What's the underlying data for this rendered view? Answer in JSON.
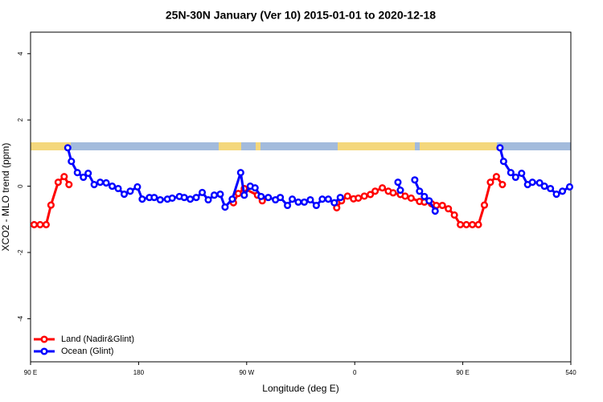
{
  "chart_data": {
    "type": "line",
    "title": "25N-30N January (Ver 10)   2015-01-01 to 2020-12-18",
    "x_label": "Longitude (deg E)",
    "y_label": "XCO2 - MLO trend (ppm)",
    "xlim": [
      90,
      540
    ],
    "ylim": [
      -5.3,
      4.65
    ],
    "xticks": [
      {
        "value": 90,
        "label": "90 E"
      },
      180,
      {
        "value": 270,
        "label": "90 W"
      },
      {
        "value": 360,
        "label": "0"
      },
      {
        "value": 450,
        "label": "90 E"
      },
      540
    ],
    "yticks": [
      4,
      2,
      0,
      -2,
      -4
    ],
    "legend": "bottom-left",
    "series": [
      {
        "name": "Land (Nadir&Glint)",
        "color": "#ff0000",
        "x": [
          93,
          98,
          103,
          107,
          113,
          118,
          122,
          null,
          259,
          263,
          268,
          279,
          283,
          null,
          345,
          349,
          354,
          359,
          363,
          368,
          373,
          377,
          383,
          388,
          392,
          398,
          402,
          407,
          414,
          418,
          424,
          428,
          433,
          438,
          443,
          448,
          453,
          458,
          463,
          468,
          473,
          478,
          483
        ],
        "values": [
          -1.16,
          -1.16,
          -1.16,
          -0.57,
          0.12,
          0.29,
          0.05,
          null,
          -0.5,
          -0.22,
          -0.07,
          -0.27,
          -0.44,
          null,
          -0.65,
          -0.44,
          -0.3,
          -0.38,
          -0.36,
          -0.3,
          -0.25,
          -0.15,
          -0.05,
          -0.15,
          -0.2,
          -0.25,
          -0.3,
          -0.36,
          -0.46,
          -0.48,
          -0.53,
          -0.58,
          -0.58,
          -0.68,
          -0.87,
          -1.16,
          -1.16,
          -1.16,
          -1.16,
          -0.57,
          0.12,
          0.29,
          0.05
        ]
      },
      {
        "name": "Ocean (Glint)",
        "color": "#0000ff",
        "x": [
          121,
          124,
          129,
          134,
          138,
          143,
          148,
          153,
          158,
          163,
          168,
          173,
          179,
          183,
          189,
          193,
          198,
          204,
          208,
          214,
          218,
          223,
          228,
          233,
          238,
          243,
          248,
          252,
          258,
          265,
          268,
          273,
          277,
          282,
          288,
          294,
          298,
          304,
          308,
          313,
          318,
          323,
          328,
          333,
          338,
          343,
          348,
          null,
          396,
          398,
          null,
          410,
          414,
          418,
          422,
          427,
          null,
          481,
          484,
          490,
          494,
          499,
          504,
          508,
          514,
          518,
          523,
          528,
          533,
          539
        ],
        "values": [
          1.16,
          0.75,
          0.41,
          0.27,
          0.39,
          0.05,
          0.12,
          0.1,
          0,
          -0.07,
          -0.24,
          -0.15,
          -0.02,
          -0.39,
          -0.34,
          -0.34,
          -0.41,
          -0.39,
          -0.36,
          -0.31,
          -0.34,
          -0.39,
          -0.34,
          -0.19,
          -0.41,
          -0.27,
          -0.24,
          -0.63,
          -0.39,
          0.41,
          -0.27,
          0,
          -0.05,
          -0.31,
          -0.34,
          -0.41,
          -0.34,
          -0.58,
          -0.39,
          -0.48,
          -0.48,
          -0.41,
          -0.58,
          -0.39,
          -0.39,
          -0.5,
          -0.34,
          null,
          0.12,
          -0.12,
          null,
          0.19,
          -0.15,
          -0.31,
          -0.44,
          -0.75,
          null,
          1.16,
          0.75,
          0.41,
          0.27,
          0.39,
          0.05,
          0.12,
          0.1,
          0,
          -0.07,
          -0.24,
          -0.15,
          -0.02
        ]
      }
    ]
  }
}
